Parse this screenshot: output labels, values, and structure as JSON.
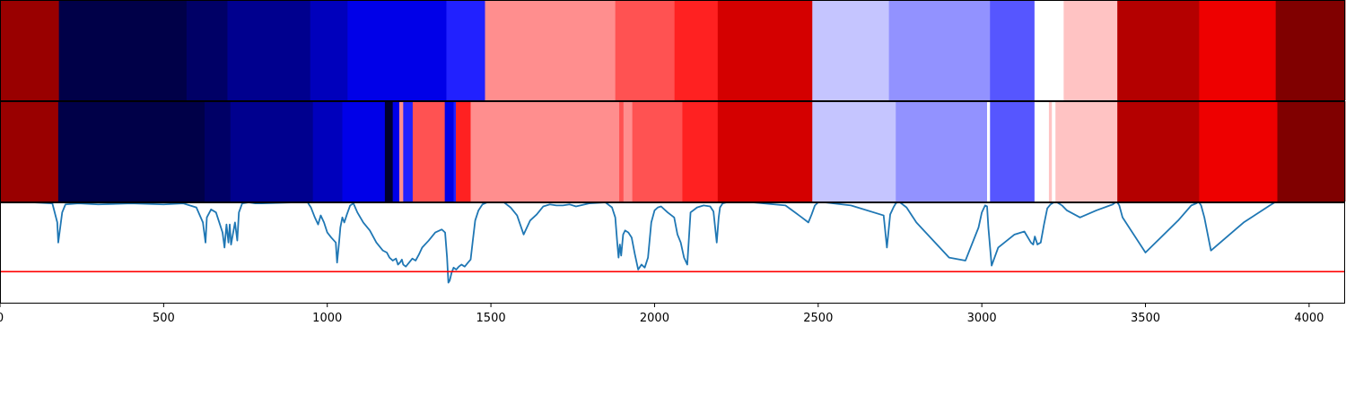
{
  "chart_data": {
    "type": "heatmap",
    "xlim": [
      0,
      4110
    ],
    "x_ticks": [
      0,
      500,
      1000,
      1500,
      2000,
      2500,
      3000,
      3500,
      4000
    ],
    "x_tick_labels": [
      "0",
      "500",
      "1000",
      "1500",
      "2000",
      "2500",
      "3000",
      "3500",
      "4000"
    ],
    "colormap": "seismic",
    "rows": [
      {
        "segments": [
          {
            "start": 0,
            "end": 180,
            "color": "#990000"
          },
          {
            "start": 180,
            "end": 570,
            "color": "#000048"
          },
          {
            "start": 570,
            "end": 695,
            "color": "#000066"
          },
          {
            "start": 695,
            "end": 948,
            "color": "#00008e"
          },
          {
            "start": 948,
            "end": 1062,
            "color": "#0000bc"
          },
          {
            "start": 1062,
            "end": 1364,
            "color": "#0000e8"
          },
          {
            "start": 1364,
            "end": 1482,
            "color": "#2121ff"
          },
          {
            "start": 1482,
            "end": 1880,
            "color": "#ff8e8e"
          },
          {
            "start": 1880,
            "end": 2061,
            "color": "#ff5252"
          },
          {
            "start": 2061,
            "end": 2193,
            "color": "#ff2121"
          },
          {
            "start": 2193,
            "end": 2482,
            "color": "#d40000"
          },
          {
            "start": 2482,
            "end": 2716,
            "color": "#c5c5ff"
          },
          {
            "start": 2716,
            "end": 3025,
            "color": "#9292ff"
          },
          {
            "start": 3025,
            "end": 3161,
            "color": "#5656ff"
          },
          {
            "start": 3161,
            "end": 3250,
            "color": "#ffffff"
          },
          {
            "start": 3250,
            "end": 3414,
            "color": "#ffc3c3"
          },
          {
            "start": 3414,
            "end": 3664,
            "color": "#b40000"
          },
          {
            "start": 3664,
            "end": 3898,
            "color": "#ee0000"
          },
          {
            "start": 3898,
            "end": 4110,
            "color": "#800000"
          }
        ]
      },
      {
        "segments": [
          {
            "start": 0,
            "end": 178,
            "color": "#990000"
          },
          {
            "start": 178,
            "end": 625,
            "color": "#000048"
          },
          {
            "start": 625,
            "end": 704,
            "color": "#000066"
          },
          {
            "start": 704,
            "end": 956,
            "color": "#00008e"
          },
          {
            "start": 956,
            "end": 1046,
            "color": "#0000bc"
          },
          {
            "start": 1046,
            "end": 1176,
            "color": "#0000e8"
          },
          {
            "start": 1176,
            "end": 1200,
            "color": "#00002e"
          },
          {
            "start": 1200,
            "end": 1220,
            "color": "#0000e8"
          },
          {
            "start": 1220,
            "end": 1232,
            "color": "#ff8e8e"
          },
          {
            "start": 1232,
            "end": 1261,
            "color": "#2121ff"
          },
          {
            "start": 1261,
            "end": 1359,
            "color": "#ff5252"
          },
          {
            "start": 1359,
            "end": 1386,
            "color": "#0000e8"
          },
          {
            "start": 1386,
            "end": 1393,
            "color": "#2121ff"
          },
          {
            "start": 1393,
            "end": 1438,
            "color": "#ff2121"
          },
          {
            "start": 1438,
            "end": 1892,
            "color": "#ff8e8e"
          },
          {
            "start": 1892,
            "end": 1905,
            "color": "#ff5252"
          },
          {
            "start": 1905,
            "end": 1932,
            "color": "#ff8e8e"
          },
          {
            "start": 1932,
            "end": 2085,
            "color": "#ff5252"
          },
          {
            "start": 2085,
            "end": 2193,
            "color": "#ff2121"
          },
          {
            "start": 2193,
            "end": 2482,
            "color": "#d40000"
          },
          {
            "start": 2482,
            "end": 2737,
            "color": "#c5c5ff"
          },
          {
            "start": 2737,
            "end": 3016,
            "color": "#9292ff"
          },
          {
            "start": 3016,
            "end": 3025,
            "color": "#ffffff"
          },
          {
            "start": 3025,
            "end": 3161,
            "color": "#5656ff"
          },
          {
            "start": 3161,
            "end": 3205,
            "color": "#ffffff"
          },
          {
            "start": 3205,
            "end": 3214,
            "color": "#ffc3c3"
          },
          {
            "start": 3214,
            "end": 3225,
            "color": "#ffffff"
          },
          {
            "start": 3225,
            "end": 3414,
            "color": "#ffc3c3"
          },
          {
            "start": 3414,
            "end": 3664,
            "color": "#b40000"
          },
          {
            "start": 3664,
            "end": 3903,
            "color": "#ee0000"
          },
          {
            "start": 3903,
            "end": 4110,
            "color": "#800000"
          }
        ]
      }
    ],
    "line_panel": {
      "ylim": [
        0,
        1
      ],
      "threshold": 0.31,
      "line_color": "#1f77b4",
      "threshold_color": "#ff0000",
      "x": [
        0,
        100,
        160,
        175,
        178,
        182,
        190,
        200,
        240,
        300,
        400,
        500,
        560,
        600,
        620,
        628,
        632,
        645,
        660,
        680,
        686,
        692,
        698,
        702,
        706,
        718,
        725,
        730,
        740,
        760,
        780,
        800,
        900,
        940,
        950,
        962,
        972,
        980,
        990,
        1000,
        1012,
        1026,
        1030,
        1036,
        1040,
        1046,
        1052,
        1060,
        1070,
        1080,
        1092,
        1110,
        1130,
        1150,
        1170,
        1182,
        1190,
        1200,
        1210,
        1216,
        1222,
        1228,
        1232,
        1240,
        1250,
        1260,
        1270,
        1280,
        1290,
        1310,
        1330,
        1350,
        1360,
        1366,
        1370,
        1374,
        1380,
        1386,
        1394,
        1402,
        1410,
        1420,
        1430,
        1438,
        1444,
        1452,
        1462,
        1474,
        1488,
        1500,
        1520,
        1540,
        1560,
        1580,
        1600,
        1620,
        1640,
        1660,
        1680,
        1700,
        1720,
        1740,
        1760,
        1800,
        1850,
        1870,
        1880,
        1886,
        1890,
        1894,
        1898,
        1904,
        1910,
        1920,
        1930,
        1940,
        1950,
        1960,
        1970,
        1980,
        1990,
        2000,
        2010,
        2020,
        2040,
        2060,
        2070,
        2080,
        2090,
        2100,
        2110,
        2130,
        2150,
        2170,
        2180,
        2190,
        2196,
        2200,
        2208,
        2220,
        2250,
        2300,
        2400,
        2450,
        2470,
        2480,
        2490,
        2500,
        2520,
        2600,
        2700,
        2710,
        2720,
        2730,
        2737,
        2742,
        2750,
        2770,
        2800,
        2900,
        2950,
        2990,
        3000,
        3010,
        3016,
        3020,
        3030,
        3050,
        3100,
        3130,
        3150,
        3157,
        3162,
        3170,
        3180,
        3190,
        3200,
        3210,
        3220,
        3230,
        3245,
        3260,
        3300,
        3350,
        3400,
        3408,
        3414,
        3420,
        3430,
        3500,
        3600,
        3640,
        3655,
        3660,
        3664,
        3670,
        3680,
        3700,
        3800,
        3880,
        3895,
        3900,
        3905,
        3910,
        3920,
        4000,
        4110
      ],
      "y": [
        1,
        1,
        0.99,
        0.8,
        0.6,
        0.7,
        0.9,
        0.98,
        0.99,
        0.98,
        0.99,
        0.98,
        0.99,
        0.95,
        0.8,
        0.6,
        0.85,
        0.93,
        0.9,
        0.7,
        0.55,
        0.78,
        0.6,
        0.78,
        0.58,
        0.8,
        0.62,
        0.9,
        0.99,
        1,
        0.99,
        0.99,
        1,
        1,
        0.95,
        0.85,
        0.78,
        0.87,
        0.8,
        0.7,
        0.65,
        0.6,
        0.4,
        0.6,
        0.75,
        0.85,
        0.8,
        0.88,
        0.97,
        0.99,
        0.9,
        0.8,
        0.72,
        0.6,
        0.52,
        0.5,
        0.45,
        0.42,
        0.44,
        0.38,
        0.4,
        0.43,
        0.38,
        0.36,
        0.4,
        0.44,
        0.42,
        0.48,
        0.55,
        0.62,
        0.7,
        0.73,
        0.7,
        0.45,
        0.2,
        0.22,
        0.3,
        0.35,
        0.33,
        0.36,
        0.38,
        0.36,
        0.4,
        0.43,
        0.6,
        0.82,
        0.92,
        0.98,
        1,
        1,
        1,
        1,
        0.95,
        0.87,
        0.68,
        0.82,
        0.88,
        0.96,
        0.98,
        0.97,
        0.97,
        0.98,
        0.96,
        0.99,
        1,
        0.95,
        0.85,
        0.6,
        0.45,
        0.58,
        0.47,
        0.68,
        0.72,
        0.7,
        0.65,
        0.48,
        0.33,
        0.38,
        0.35,
        0.45,
        0.8,
        0.92,
        0.95,
        0.96,
        0.9,
        0.85,
        0.68,
        0.6,
        0.45,
        0.38,
        0.9,
        0.95,
        0.97,
        0.96,
        0.91,
        0.6,
        0.85,
        0.95,
        0.99,
        1,
        1,
        1,
        0.97,
        0.85,
        0.8,
        0.88,
        0.97,
        1,
        1,
        0.97,
        0.87,
        0.55,
        0.88,
        0.95,
        0.99,
        1,
        1,
        0.95,
        0.8,
        0.45,
        0.42,
        0.75,
        0.9,
        0.97,
        0.96,
        0.75,
        0.37,
        0.55,
        0.68,
        0.71,
        0.6,
        0.58,
        0.66,
        0.58,
        0.6,
        0.78,
        0.94,
        0.98,
        1,
        1,
        0.97,
        0.92,
        0.85,
        0.92,
        0.98,
        1,
        1,
        0.97,
        0.85,
        0.5,
        0.82,
        0.97,
        0.99,
        1,
        1,
        0.97,
        0.85,
        0.52,
        0.8,
        0.97,
        1,
        1
      ]
    }
  }
}
